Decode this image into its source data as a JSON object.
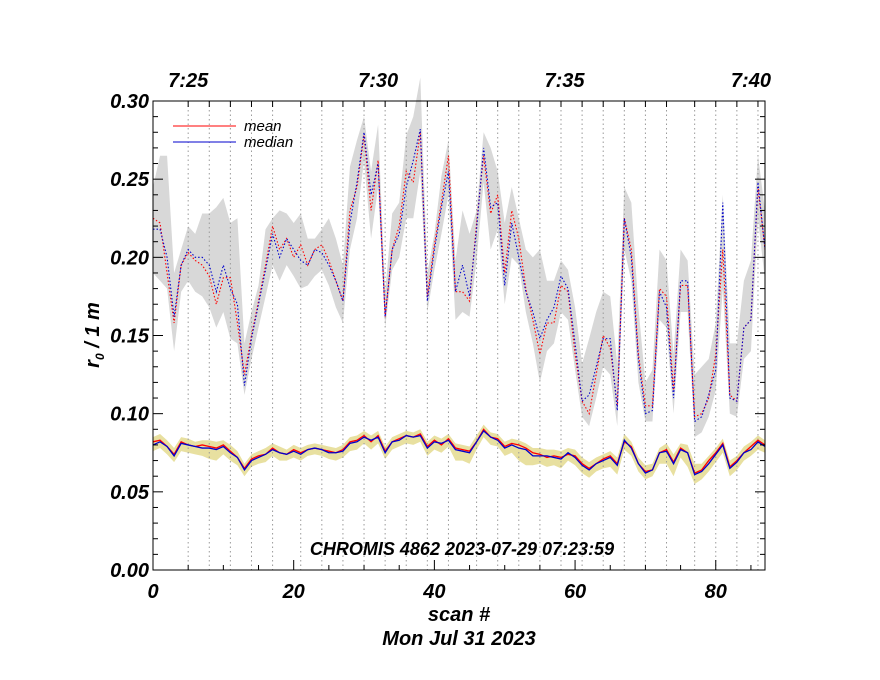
{
  "chart_data": {
    "type": "line",
    "annotation": "CHROMIS 4862 2023-07-29 07:23:59",
    "xlabel": "scan #",
    "date_label": "Mon Jul 31 2023",
    "ylabel_main": "r",
    "ylabel_sub": "0",
    "ylabel_rest": " / 1 m",
    "xlim": [
      0,
      87
    ],
    "ylim": [
      0,
      0.3
    ],
    "x_ticks": [
      "0",
      "20",
      "40",
      "60",
      "80"
    ],
    "y_ticks": [
      "0.00",
      "0.05",
      "0.10",
      "0.15",
      "0.20",
      "0.25",
      "0.30"
    ],
    "top_axis": {
      "labels": [
        "7:25",
        "7:30",
        "7:35",
        "7:40"
      ],
      "label_positions": [
        5,
        32,
        58.5,
        85
      ]
    },
    "time_gridlines": [
      5,
      8,
      11,
      14,
      17,
      21,
      24,
      27,
      30,
      33,
      36,
      39,
      42,
      46,
      49,
      52,
      55,
      58,
      61,
      64,
      67,
      70,
      73,
      77,
      80,
      83,
      86
    ],
    "legend": [
      {
        "name": "mean",
        "color": "#ff0000"
      },
      {
        "name": "median",
        "color": "#0000cc"
      }
    ],
    "series": [
      {
        "name": "mean (upper)",
        "color": "#ff0000",
        "style": "dotted",
        "values": [
          0.225,
          0.222,
          0.19,
          0.158,
          0.195,
          0.203,
          0.198,
          0.195,
          0.188,
          0.17,
          0.187,
          0.187,
          0.158,
          0.125,
          0.15,
          0.172,
          0.195,
          0.22,
          0.205,
          0.212,
          0.2,
          0.208,
          0.195,
          0.205,
          0.208,
          0.198,
          0.185,
          0.172,
          0.23,
          0.245,
          0.278,
          0.23,
          0.262,
          0.162,
          0.205,
          0.22,
          0.255,
          0.248,
          0.28,
          0.175,
          0.208,
          0.235,
          0.265,
          0.178,
          0.178,
          0.172,
          0.222,
          0.265,
          0.228,
          0.24,
          0.19,
          0.23,
          0.212,
          0.18,
          0.16,
          0.138,
          0.158,
          0.158,
          0.182,
          0.178,
          0.138,
          0.108,
          0.1,
          0.125,
          0.15,
          0.142,
          0.105,
          0.225,
          0.205,
          0.138,
          0.105,
          0.105,
          0.18,
          0.175,
          0.115,
          0.182,
          0.182,
          0.098,
          0.1,
          0.11,
          0.138,
          0.205,
          0.112,
          0.108,
          0.155,
          0.16,
          0.245,
          0.205
        ]
      },
      {
        "name": "median (upper)",
        "color": "#0000cc",
        "style": "dotted",
        "values": [
          0.218,
          0.218,
          0.2,
          0.162,
          0.195,
          0.205,
          0.2,
          0.2,
          0.195,
          0.178,
          0.195,
          0.18,
          0.17,
          0.118,
          0.148,
          0.17,
          0.192,
          0.215,
          0.2,
          0.212,
          0.205,
          0.198,
          0.195,
          0.205,
          0.203,
          0.195,
          0.185,
          0.172,
          0.222,
          0.248,
          0.28,
          0.24,
          0.26,
          0.162,
          0.205,
          0.215,
          0.245,
          0.262,
          0.282,
          0.172,
          0.205,
          0.232,
          0.255,
          0.178,
          0.195,
          0.175,
          0.218,
          0.27,
          0.232,
          0.235,
          0.182,
          0.222,
          0.2,
          0.178,
          0.165,
          0.148,
          0.16,
          0.168,
          0.188,
          0.18,
          0.145,
          0.108,
          0.112,
          0.13,
          0.148,
          0.148,
          0.102,
          0.225,
          0.2,
          0.135,
          0.1,
          0.102,
          0.178,
          0.168,
          0.11,
          0.185,
          0.185,
          0.095,
          0.098,
          0.112,
          0.128,
          0.235,
          0.11,
          0.108,
          0.155,
          0.16,
          0.248,
          0.205
        ]
      },
      {
        "name": "mean (lower)",
        "color": "#ff0000",
        "style": "solid",
        "values": [
          0.082,
          0.083,
          0.079,
          0.074,
          0.082,
          0.08,
          0.079,
          0.08,
          0.079,
          0.078,
          0.08,
          0.076,
          0.072,
          0.065,
          0.071,
          0.073,
          0.074,
          0.078,
          0.075,
          0.074,
          0.077,
          0.075,
          0.077,
          0.078,
          0.077,
          0.076,
          0.075,
          0.077,
          0.082,
          0.083,
          0.086,
          0.082,
          0.086,
          0.076,
          0.082,
          0.084,
          0.086,
          0.085,
          0.087,
          0.079,
          0.083,
          0.08,
          0.084,
          0.078,
          0.077,
          0.076,
          0.082,
          0.09,
          0.085,
          0.084,
          0.079,
          0.081,
          0.08,
          0.078,
          0.075,
          0.074,
          0.072,
          0.073,
          0.072,
          0.074,
          0.073,
          0.068,
          0.065,
          0.068,
          0.071,
          0.073,
          0.068,
          0.082,
          0.079,
          0.068,
          0.063,
          0.064,
          0.075,
          0.077,
          0.069,
          0.078,
          0.075,
          0.062,
          0.064,
          0.07,
          0.075,
          0.081,
          0.066,
          0.07,
          0.075,
          0.079,
          0.083,
          0.08
        ]
      },
      {
        "name": "median (lower)",
        "color": "#0000cc",
        "style": "solid",
        "values": [
          0.08,
          0.082,
          0.079,
          0.073,
          0.081,
          0.08,
          0.079,
          0.078,
          0.078,
          0.077,
          0.079,
          0.075,
          0.072,
          0.064,
          0.07,
          0.072,
          0.074,
          0.077,
          0.075,
          0.074,
          0.076,
          0.074,
          0.077,
          0.078,
          0.077,
          0.075,
          0.075,
          0.076,
          0.081,
          0.082,
          0.085,
          0.083,
          0.085,
          0.075,
          0.082,
          0.083,
          0.086,
          0.085,
          0.086,
          0.078,
          0.082,
          0.081,
          0.083,
          0.077,
          0.076,
          0.075,
          0.082,
          0.089,
          0.085,
          0.083,
          0.078,
          0.08,
          0.078,
          0.077,
          0.073,
          0.073,
          0.073,
          0.072,
          0.071,
          0.075,
          0.072,
          0.067,
          0.064,
          0.068,
          0.07,
          0.072,
          0.067,
          0.083,
          0.078,
          0.068,
          0.062,
          0.064,
          0.075,
          0.076,
          0.068,
          0.077,
          0.075,
          0.061,
          0.063,
          0.068,
          0.074,
          0.08,
          0.065,
          0.069,
          0.075,
          0.077,
          0.082,
          0.079
        ]
      }
    ],
    "band_upper": {
      "color": "#d8d8d8",
      "high": [
        0.245,
        0.265,
        0.265,
        0.19,
        0.205,
        0.22,
        0.215,
        0.228,
        0.228,
        0.232,
        0.238,
        0.222,
        0.225,
        0.145,
        0.165,
        0.182,
        0.218,
        0.225,
        0.23,
        0.228,
        0.222,
        0.228,
        0.212,
        0.212,
        0.218,
        0.225,
        0.212,
        0.195,
        0.258,
        0.275,
        0.29,
        0.255,
        0.285,
        0.178,
        0.228,
        0.235,
        0.278,
        0.29,
        0.315,
        0.19,
        0.215,
        0.252,
        0.275,
        0.198,
        0.23,
        0.215,
        0.23,
        0.28,
        0.27,
        0.255,
        0.222,
        0.245,
        0.225,
        0.205,
        0.2,
        0.205,
        0.185,
        0.185,
        0.198,
        0.192,
        0.168,
        0.132,
        0.148,
        0.165,
        0.178,
        0.175,
        0.132,
        0.245,
        0.235,
        0.168,
        0.12,
        0.128,
        0.205,
        0.198,
        0.138,
        0.205,
        0.198,
        0.125,
        0.13,
        0.135,
        0.158,
        0.24,
        0.145,
        0.145,
        0.185,
        0.198,
        0.265,
        0.23
      ],
      "low": [
        0.19,
        0.185,
        0.18,
        0.14,
        0.178,
        0.185,
        0.178,
        0.175,
        0.168,
        0.155,
        0.165,
        0.148,
        0.145,
        0.112,
        0.135,
        0.155,
        0.175,
        0.195,
        0.185,
        0.195,
        0.188,
        0.18,
        0.182,
        0.188,
        0.192,
        0.182,
        0.168,
        0.158,
        0.205,
        0.225,
        0.262,
        0.212,
        0.245,
        0.155,
        0.192,
        0.2,
        0.225,
        0.225,
        0.255,
        0.165,
        0.192,
        0.215,
        0.24,
        0.16,
        0.165,
        0.162,
        0.198,
        0.248,
        0.205,
        0.218,
        0.17,
        0.2,
        0.195,
        0.165,
        0.145,
        0.12,
        0.14,
        0.145,
        0.165,
        0.16,
        0.128,
        0.098,
        0.092,
        0.11,
        0.13,
        0.125,
        0.092,
        0.205,
        0.185,
        0.12,
        0.095,
        0.095,
        0.16,
        0.155,
        0.1,
        0.165,
        0.165,
        0.085,
        0.088,
        0.098,
        0.115,
        0.18,
        0.1,
        0.098,
        0.135,
        0.14,
        0.225,
        0.185
      ]
    },
    "band_lower": {
      "color": "#e8e0a0",
      "high": [
        0.085,
        0.087,
        0.083,
        0.078,
        0.085,
        0.084,
        0.082,
        0.083,
        0.083,
        0.082,
        0.083,
        0.08,
        0.076,
        0.068,
        0.074,
        0.076,
        0.078,
        0.081,
        0.079,
        0.077,
        0.08,
        0.078,
        0.08,
        0.081,
        0.08,
        0.079,
        0.078,
        0.08,
        0.085,
        0.086,
        0.089,
        0.086,
        0.089,
        0.079,
        0.085,
        0.087,
        0.089,
        0.088,
        0.09,
        0.082,
        0.086,
        0.084,
        0.087,
        0.081,
        0.08,
        0.079,
        0.086,
        0.093,
        0.088,
        0.087,
        0.082,
        0.084,
        0.083,
        0.081,
        0.078,
        0.078,
        0.077,
        0.077,
        0.076,
        0.078,
        0.077,
        0.072,
        0.069,
        0.072,
        0.074,
        0.076,
        0.072,
        0.087,
        0.082,
        0.072,
        0.067,
        0.068,
        0.078,
        0.081,
        0.074,
        0.081,
        0.08,
        0.068,
        0.068,
        0.073,
        0.078,
        0.084,
        0.07,
        0.073,
        0.079,
        0.082,
        0.086,
        0.083
      ],
      "low": [
        0.076,
        0.078,
        0.074,
        0.069,
        0.076,
        0.075,
        0.074,
        0.073,
        0.071,
        0.07,
        0.074,
        0.07,
        0.067,
        0.06,
        0.066,
        0.068,
        0.069,
        0.073,
        0.07,
        0.07,
        0.072,
        0.07,
        0.073,
        0.074,
        0.073,
        0.071,
        0.07,
        0.072,
        0.076,
        0.077,
        0.081,
        0.077,
        0.081,
        0.071,
        0.077,
        0.079,
        0.081,
        0.08,
        0.082,
        0.073,
        0.077,
        0.075,
        0.079,
        0.07,
        0.07,
        0.068,
        0.077,
        0.085,
        0.08,
        0.079,
        0.073,
        0.075,
        0.07,
        0.067,
        0.067,
        0.068,
        0.066,
        0.067,
        0.065,
        0.07,
        0.067,
        0.062,
        0.059,
        0.063,
        0.065,
        0.066,
        0.061,
        0.077,
        0.073,
        0.063,
        0.058,
        0.06,
        0.068,
        0.068,
        0.06,
        0.072,
        0.066,
        0.055,
        0.058,
        0.063,
        0.069,
        0.075,
        0.06,
        0.064,
        0.07,
        0.073,
        0.077,
        0.075
      ]
    }
  }
}
